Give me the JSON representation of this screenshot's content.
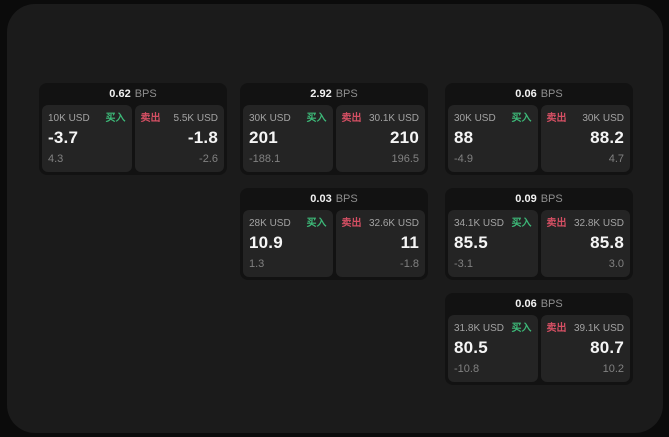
{
  "colors": {
    "page_bg": "#0b0b0b",
    "surface_bg": "#1b1b1b",
    "card_bg": "#121212",
    "panel_bg": "#242424",
    "buy_green": "#3dba79",
    "sell_red": "#d44f63"
  },
  "labels": {
    "bps_unit": "BPS",
    "buy": "买入",
    "sell": "卖出"
  },
  "cards": [
    {
      "bps": "0.62",
      "buy": {
        "amount": "10K USD",
        "price": "-3.7",
        "sub": "4.3"
      },
      "sell": {
        "amount": "5.5K USD",
        "price": "-1.8",
        "sub": "-2.6"
      }
    },
    {
      "bps": "2.92",
      "buy": {
        "amount": "30K USD",
        "price": "201",
        "sub": "-188.1"
      },
      "sell": {
        "amount": "30.1K USD",
        "price": "210",
        "sub": "196.5"
      }
    },
    {
      "bps": "0.06",
      "buy": {
        "amount": "30K USD",
        "price": "88",
        "sub": "-4.9"
      },
      "sell": {
        "amount": "30K USD",
        "price": "88.2",
        "sub": "4.7"
      }
    },
    {
      "bps": "0.03",
      "buy": {
        "amount": "28K USD",
        "price": "10.9",
        "sub": "1.3"
      },
      "sell": {
        "amount": "32.6K USD",
        "price": "11",
        "sub": "-1.8"
      }
    },
    {
      "bps": "0.09",
      "buy": {
        "amount": "34.1K USD",
        "price": "85.5",
        "sub": "-3.1"
      },
      "sell": {
        "amount": "32.8K USD",
        "price": "85.8",
        "sub": "3.0"
      }
    },
    {
      "bps": "0.06",
      "buy": {
        "amount": "31.8K USD",
        "price": "80.5",
        "sub": "-10.8"
      },
      "sell": {
        "amount": "39.1K USD",
        "price": "80.7",
        "sub": "10.2"
      }
    }
  ]
}
